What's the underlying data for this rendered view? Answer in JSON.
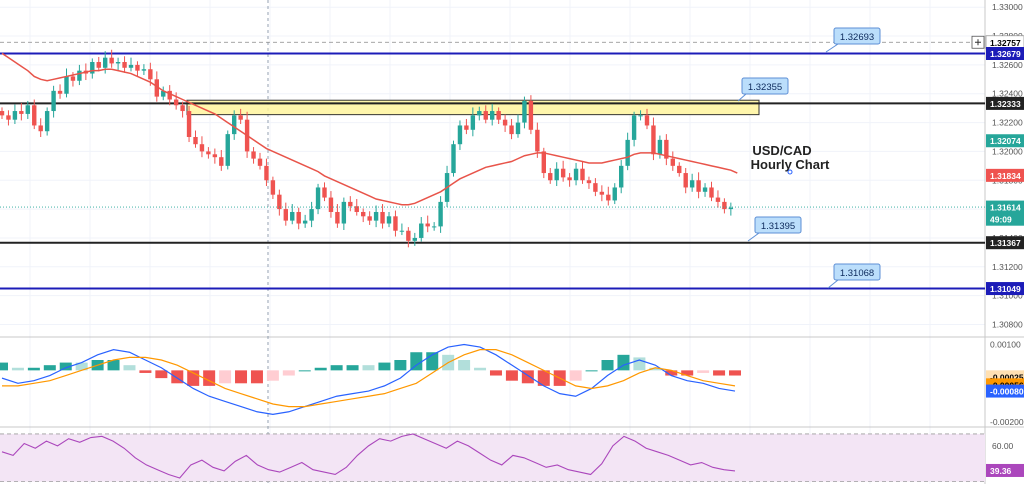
{
  "chart_title": "USD/CAD\nHourly Chart",
  "colors": {
    "up": "#26a69a",
    "down": "#ef5350",
    "ema": "#e8544a",
    "level_blue": "#1c1cb8",
    "level_black": "#222222",
    "zone_fill": "#fff59d",
    "macd_line": "#2962ff",
    "signal_line": "#ff9800",
    "rsi_line": "#ab47bc",
    "rsi_band": "#f3e5f5",
    "callout_bg": "#bbdefb",
    "callout_border": "#5d8fd6"
  },
  "price_axis": {
    "ticks": [
      "1.33000",
      "1.32800",
      "1.32600",
      "1.32400",
      "1.32200",
      "1.32000",
      "1.31800",
      "1.31600",
      "1.31400",
      "1.31200",
      "1.31000",
      "1.30800"
    ],
    "range": [
      1.3072,
      1.3305
    ]
  },
  "price_tags": [
    {
      "label": "1.32757",
      "value": 1.32757,
      "bg": "#ffffff",
      "fg": "#000000",
      "border": "#999999"
    },
    {
      "label": "1.32679",
      "value": 1.32679,
      "bg": "#1c1cb8",
      "fg": "#ffffff"
    },
    {
      "label": "1.32333",
      "value": 1.32333,
      "bg": "#222222",
      "fg": "#ffffff"
    },
    {
      "label": "1.32074",
      "value": 1.32074,
      "bg": "#26a69a",
      "fg": "#ffffff"
    },
    {
      "label": "1.31834",
      "value": 1.31834,
      "bg": "#ef5350",
      "fg": "#ffffff"
    },
    {
      "label": "1.31614",
      "value": 1.31614,
      "bg": "#26a69a",
      "fg": "#ffffff"
    },
    {
      "label": "49:09",
      "value": 1.3153,
      "bg": "#26a69a",
      "fg": "#ffffff"
    },
    {
      "label": "1.31367",
      "value": 1.31367,
      "bg": "#222222",
      "fg": "#ffffff"
    },
    {
      "label": "1.31049",
      "value": 1.31049,
      "bg": "#1c1cb8",
      "fg": "#ffffff"
    }
  ],
  "levels": [
    {
      "value": 1.32679,
      "color": "#1c1cb8",
      "callout": "1.32693"
    },
    {
      "value": 1.32333,
      "color": "#222222",
      "callout": ""
    },
    {
      "value": 1.31367,
      "color": "#222222",
      "callout": "1.31395"
    },
    {
      "value": 1.31049,
      "color": "#1c1cb8",
      "callout": "1.31068"
    }
  ],
  "resistance_zone": {
    "top": 1.32355,
    "bottom": 1.32255,
    "callout": "1.32355"
  },
  "dashed_level": 1.32757,
  "current_price": 1.31614,
  "macd_axis": {
    "ticks": [
      "0.00100",
      "-0.00200"
    ],
    "tags": [
      {
        "label": "-0.00025",
        "value": -0.00025,
        "bg": "#ffe0b2",
        "fg": "#000000"
      },
      {
        "label": "-0.00056",
        "value": -0.00056,
        "bg": "#ff9800",
        "fg": "#000000"
      },
      {
        "label": "-0.00080",
        "value": -0.0008,
        "bg": "#2962ff",
        "fg": "#ffffff"
      }
    ],
    "range": [
      -0.00215,
      0.00125
    ]
  },
  "rsi_axis": {
    "ticks": [
      "60.00"
    ],
    "tag": {
      "label": "39.36",
      "value": 39.36,
      "bg": "#ab47bc",
      "fg": "#ffffff"
    },
    "range": [
      28,
      75
    ],
    "band": [
      30,
      70
    ]
  },
  "chart_data": {
    "type": "candlestick",
    "title": "USD/CAD\nHourly Chart",
    "y_range": [
      1.3072,
      1.3305
    ],
    "close_series": [
      1.3225,
      1.3222,
      1.3228,
      1.3226,
      1.3232,
      1.3218,
      1.3214,
      1.3228,
      1.3242,
      1.324,
      1.3252,
      1.3249,
      1.3256,
      1.3254,
      1.3262,
      1.3258,
      1.3265,
      1.3261,
      1.3262,
      1.3258,
      1.326,
      1.3256,
      1.3257,
      1.325,
      1.3238,
      1.3242,
      1.3236,
      1.3232,
      1.3228,
      1.321,
      1.3205,
      1.32,
      1.3198,
      1.3196,
      1.319,
      1.3212,
      1.3225,
      1.3222,
      1.32,
      1.3195,
      1.319,
      1.318,
      1.317,
      1.316,
      1.3152,
      1.3158,
      1.315,
      1.3152,
      1.316,
      1.3175,
      1.3168,
      1.3158,
      1.315,
      1.3165,
      1.3162,
      1.3158,
      1.3155,
      1.3152,
      1.3158,
      1.315,
      1.3155,
      1.3145,
      1.3145,
      1.3138,
      1.314,
      1.315,
      1.3148,
      1.3148,
      1.3165,
      1.3185,
      1.3205,
      1.3218,
      1.3215,
      1.3225,
      1.3228,
      1.3222,
      1.3228,
      1.3222,
      1.3218,
      1.3212,
      1.322,
      1.3235,
      1.3215,
      1.32,
      1.3185,
      1.318,
      1.3188,
      1.3182,
      1.318,
      1.3188,
      1.318,
      1.3178,
      1.3172,
      1.317,
      1.3166,
      1.3175,
      1.319,
      1.3208,
      1.3225,
      1.3225,
      1.3218,
      1.3198,
      1.3208,
      1.3195,
      1.319,
      1.3185,
      1.3175,
      1.318,
      1.3172,
      1.3175,
      1.3168,
      1.3165,
      1.316,
      1.3161
    ],
    "ema_series": [
      1.3268,
      1.3265,
      1.3262,
      1.3259,
      1.3256,
      1.3252,
      1.325,
      1.3249,
      1.325,
      1.3251,
      1.3252,
      1.3253,
      1.3254,
      1.3255,
      1.3256,
      1.3256,
      1.3257,
      1.3257,
      1.3256,
      1.3255,
      1.3254,
      1.3252,
      1.325,
      1.3248,
      1.3245,
      1.3242,
      1.324,
      1.3238,
      1.3236,
      1.3234,
      1.3232,
      1.323,
      1.3228,
      1.3226,
      1.3223,
      1.322,
      1.3217,
      1.3214,
      1.3211,
      1.3208,
      1.3205,
      1.3202,
      1.32,
      1.3198,
      1.3196,
      1.3194,
      1.3192,
      1.319,
      1.3188,
      1.3186,
      1.3183,
      1.3181,
      1.3179,
      1.3177,
      1.3175,
      1.3173,
      1.3171,
      1.3169,
      1.3167,
      1.3166,
      1.3165,
      1.3164,
      1.3163,
      1.3163,
      1.3164,
      1.3166,
      1.3168,
      1.317,
      1.3172,
      1.3175,
      1.3178,
      1.3181,
      1.3183,
      1.3185,
      1.3187,
      1.3189,
      1.319,
      1.3191,
      1.3192,
      1.3193,
      1.3195,
      1.3197,
      1.3198,
      1.3199,
      1.3199,
      1.3198,
      1.3197,
      1.3196,
      1.3195,
      1.3194,
      1.3193,
      1.3192,
      1.3192,
      1.3192,
      1.3193,
      1.3194,
      1.3195,
      1.3196,
      1.3198,
      1.3199,
      1.3199,
      1.3199,
      1.3198,
      1.3197,
      1.3196,
      1.3195,
      1.3194,
      1.3193,
      1.3192,
      1.3191,
      1.319,
      1.3189,
      1.3188,
      1.3187,
      1.3185
    ],
    "macd_series": [
      -0.0003,
      -0.0005,
      -0.0004,
      -0.0002,
      0.0001,
      0.0003,
      0.0006,
      0.0008,
      0.0007,
      0.0004,
      0.0001,
      -0.0003,
      -0.0007,
      -0.001,
      -0.0012,
      -0.0014,
      -0.0016,
      -0.0017,
      -0.0016,
      -0.0014,
      -0.0012,
      -0.001,
      -0.0009,
      -0.0008,
      -0.0006,
      -0.0003,
      0.0002,
      0.0006,
      0.0009,
      0.001,
      0.0009,
      0.0006,
      0.0002,
      -0.0002,
      -0.0006,
      -0.0009,
      -0.001,
      -0.0007,
      -0.0002,
      0.0002,
      0.0004,
      0.0002,
      -0.0002,
      -0.0004,
      -0.0005,
      -0.0007,
      -0.0008
    ],
    "signal_series": [
      -0.0006,
      -0.0006,
      -0.0005,
      -0.0004,
      -0.0002,
      0.0,
      0.0002,
      0.0004,
      0.0005,
      0.0005,
      0.0004,
      0.0002,
      -0.0001,
      -0.0004,
      -0.0007,
      -0.0009,
      -0.0011,
      -0.0013,
      -0.0014,
      -0.0014,
      -0.0013,
      -0.0012,
      -0.0011,
      -0.001,
      -0.0009,
      -0.0007,
      -0.0005,
      -0.0001,
      0.0003,
      0.0006,
      0.0008,
      0.0008,
      0.0006,
      0.0003,
      0.0,
      -0.0003,
      -0.0006,
      -0.0007,
      -0.0006,
      -0.0004,
      -0.0001,
      0.0001,
      0.0,
      -0.0002,
      -0.0004,
      -0.0005,
      -0.0006
    ],
    "rsi_series": [
      55,
      52,
      62,
      58,
      64,
      60,
      66,
      63,
      67,
      68,
      64,
      58,
      50,
      44,
      40,
      36,
      33,
      44,
      48,
      42,
      39,
      47,
      52,
      44,
      40,
      38,
      42,
      46,
      40,
      38,
      36,
      42,
      52,
      60,
      66,
      64,
      68,
      70,
      66,
      62,
      58,
      64,
      60,
      54,
      48,
      44,
      52,
      50,
      46,
      42,
      44,
      40,
      38,
      36,
      45,
      60,
      68,
      64,
      58,
      55,
      52,
      48,
      44,
      46,
      42,
      40,
      39
    ]
  }
}
